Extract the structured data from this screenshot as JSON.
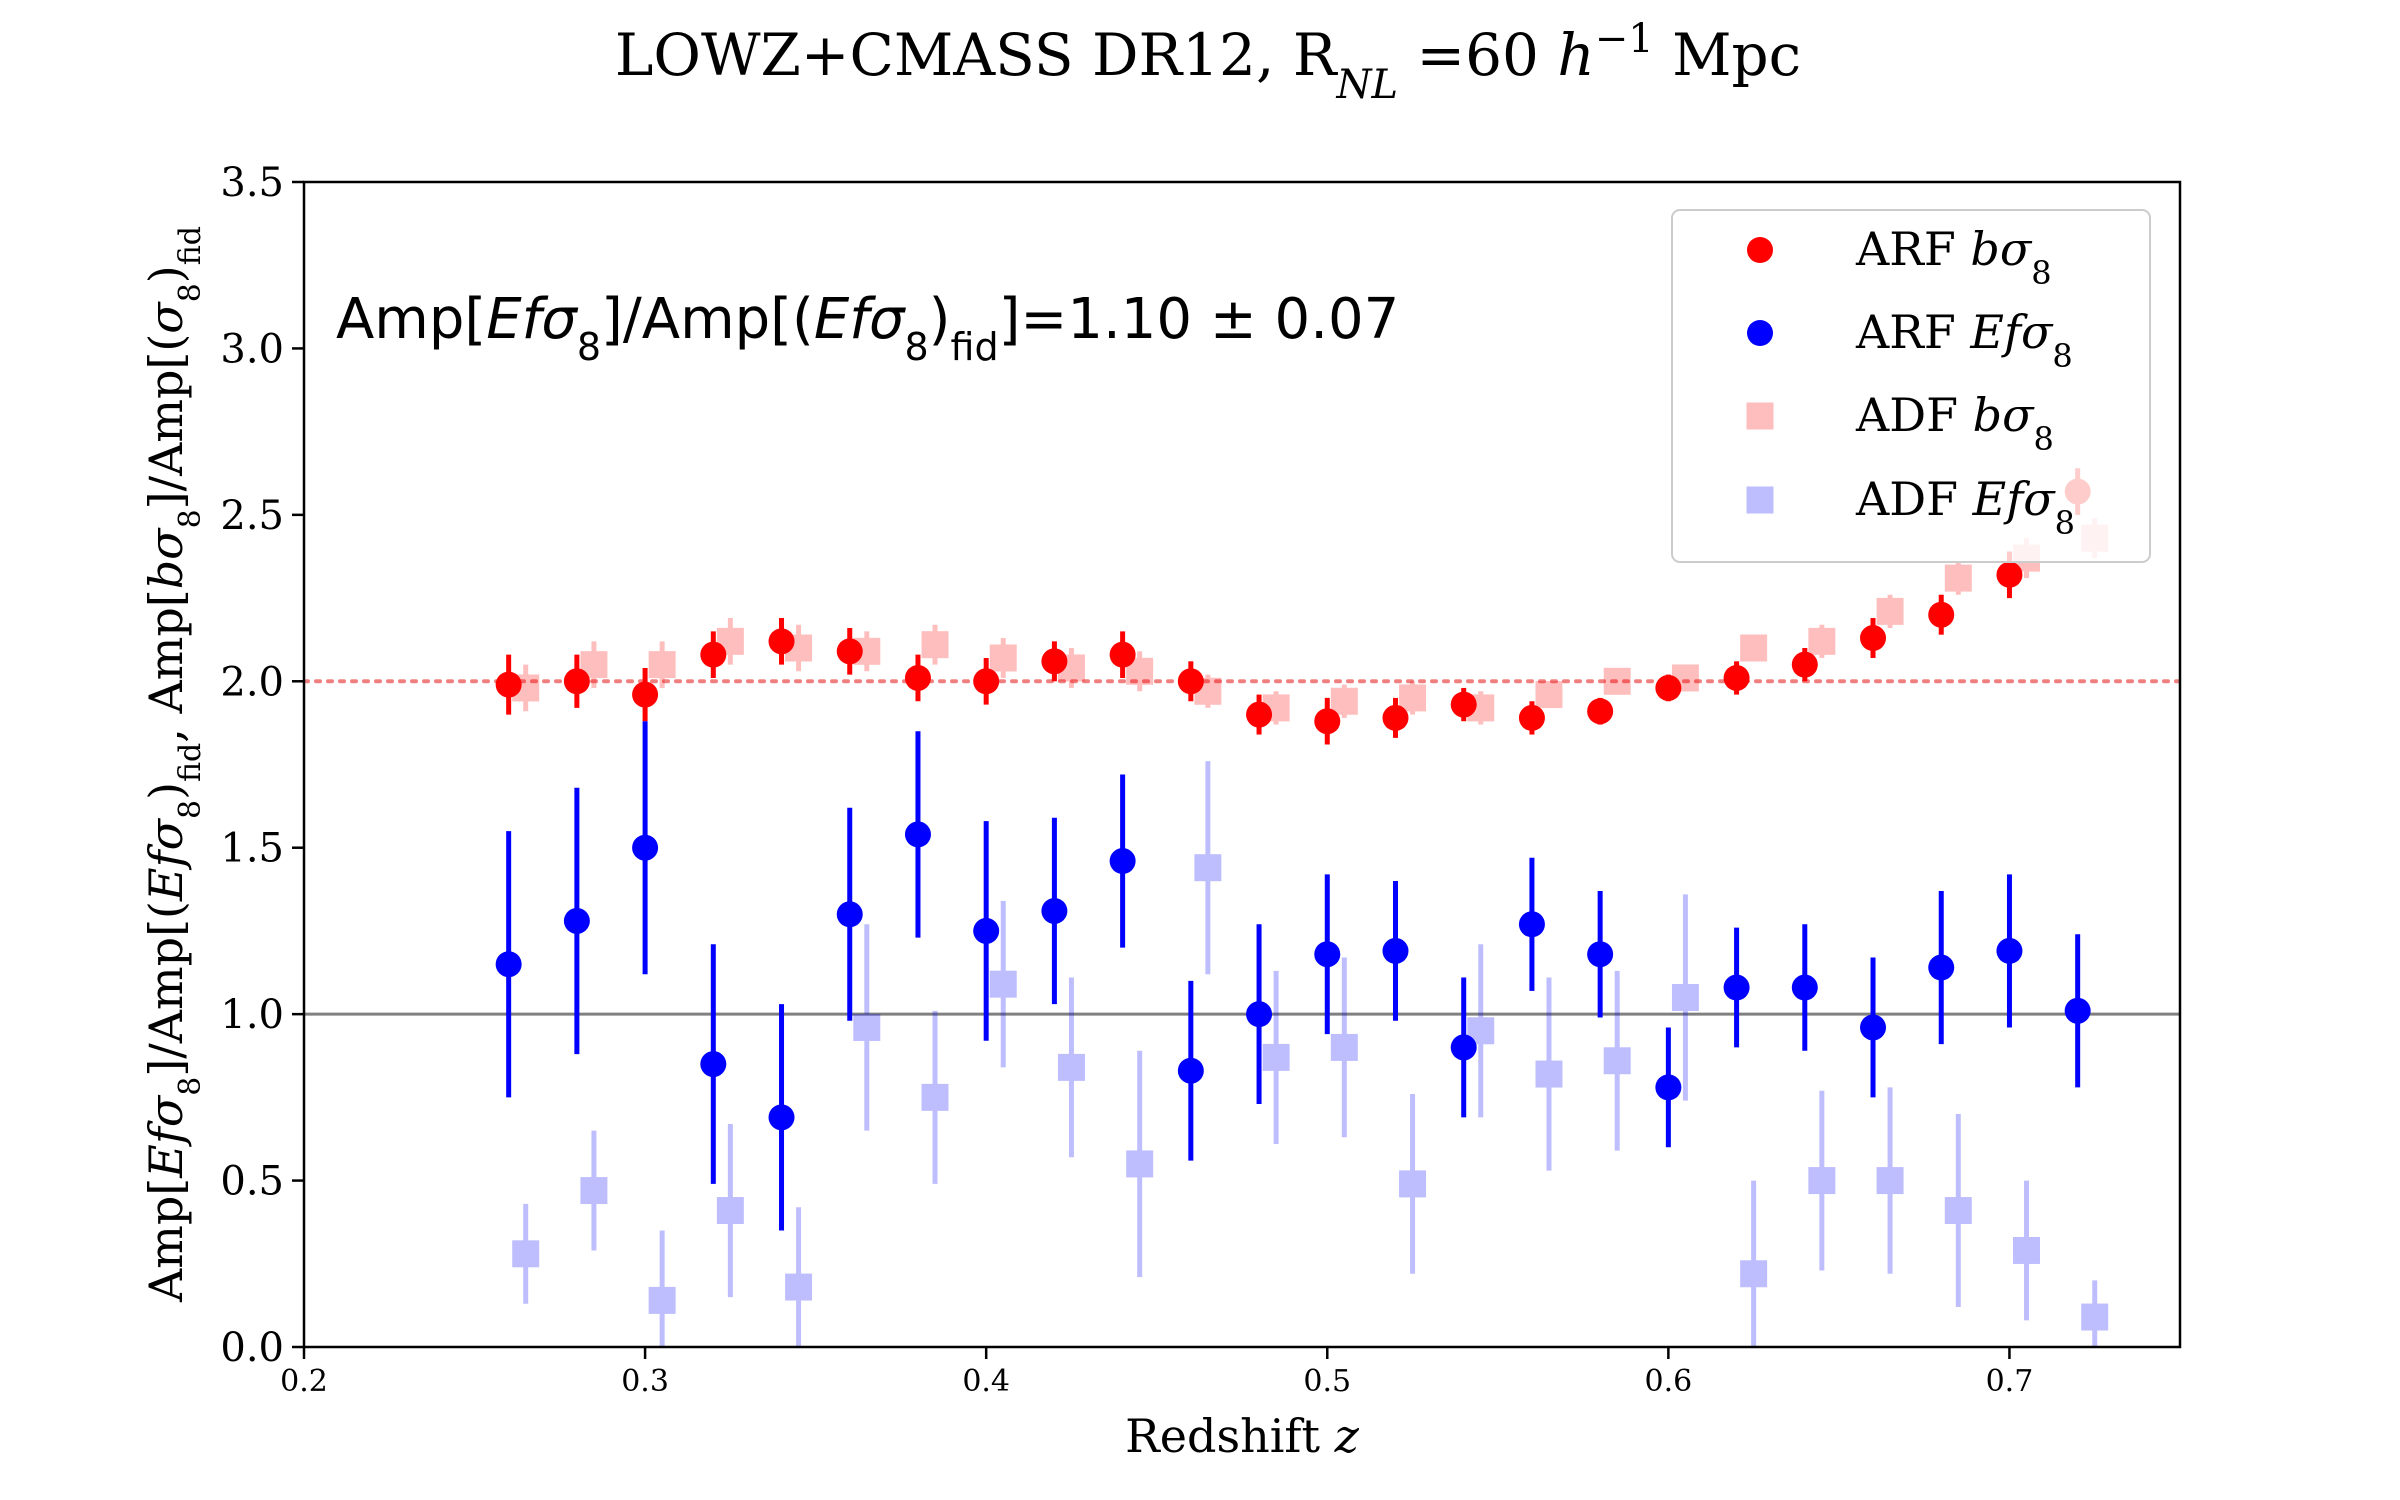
{
  "chart_data": {
    "type": "scatter",
    "title": "LOWZ+CMASS DR12, R_NL =60 h^-1 Mpc",
    "title_parts": {
      "pre": "LOWZ+CMASS DR12, R",
      "sub": "NL",
      "mid": " =60 ",
      "h": "h",
      "sup": "−1",
      "post": " Mpc"
    },
    "xlabel": "Redshift z",
    "xlabel_parts": {
      "text": "Redshift ",
      "var": "z"
    },
    "ylabel": "Amp[Efσ8]/Amp[(Efσ8)fid, Amp[bσ8]/Amp[(σ8)fid]",
    "ylabel_parts": [
      "Amp[",
      "Efσ",
      "8",
      "]/Amp[(",
      "Efσ",
      "8",
      ")",
      "fid",
      ", Amp[",
      "bσ",
      "8",
      "]/Amp[(",
      "σ",
      "8",
      ")",
      "fid"
    ],
    "xlim": [
      0.2,
      0.75
    ],
    "ylim": [
      0.0,
      3.5
    ],
    "xticks": [
      0.2,
      0.3,
      0.4,
      0.5,
      0.6,
      0.7
    ],
    "xtick_labels": [
      "0.2",
      "0.3",
      "0.4",
      "0.5",
      "0.6",
      "0.7"
    ],
    "yticks": [
      0.0,
      0.5,
      1.0,
      1.5,
      2.0,
      2.5,
      3.0,
      3.5
    ],
    "ytick_labels": [
      "0.0",
      "0.5",
      "1.0",
      "1.5",
      "2.0",
      "2.5",
      "3.0",
      "3.5"
    ],
    "grid": false,
    "legend_position": "top-right",
    "reference_lines": [
      {
        "y": 2.0,
        "style": "dotted",
        "color": "#f08080"
      },
      {
        "y": 1.0,
        "style": "solid",
        "color": "#808080"
      }
    ],
    "annotation": "Amp[Efσ8]/Amp[(Efσ8)fid]=1.10 ± 0.07",
    "annotation_parts": [
      "Amp[",
      "Efσ",
      "8",
      "]/Amp[(",
      "Efσ",
      "8",
      ")",
      "fid",
      "]=1.10 ± 0.07"
    ],
    "series": [
      {
        "name": "ARF bσ8",
        "legend_parts": {
          "pre": "ARF ",
          "var": "bσ",
          "sub": "8"
        },
        "marker": "circle",
        "color": "#ff0000",
        "alpha": 1.0,
        "x": [
          0.26,
          0.28,
          0.3,
          0.32,
          0.34,
          0.36,
          0.38,
          0.4,
          0.42,
          0.44,
          0.46,
          0.48,
          0.5,
          0.52,
          0.54,
          0.56,
          0.58,
          0.6,
          0.62,
          0.64,
          0.66,
          0.68,
          0.7,
          0.72
        ],
        "y": [
          1.99,
          2.0,
          1.96,
          2.08,
          2.12,
          2.09,
          2.01,
          2.0,
          2.06,
          2.08,
          2.0,
          1.9,
          1.88,
          1.89,
          1.93,
          1.89,
          1.91,
          1.98,
          2.01,
          2.05,
          2.13,
          2.2,
          2.32,
          2.57
        ],
        "err": [
          0.09,
          0.08,
          0.08,
          0.07,
          0.07,
          0.07,
          0.07,
          0.07,
          0.06,
          0.07,
          0.06,
          0.06,
          0.07,
          0.06,
          0.05,
          0.05,
          0.04,
          0.04,
          0.05,
          0.05,
          0.06,
          0.06,
          0.07,
          0.07
        ]
      },
      {
        "name": "ARF Efσ8",
        "legend_parts": {
          "pre": "ARF ",
          "var": "Efσ",
          "sub": "8"
        },
        "marker": "circle",
        "color": "#0000ff",
        "alpha": 1.0,
        "x": [
          0.26,
          0.28,
          0.3,
          0.32,
          0.34,
          0.36,
          0.38,
          0.4,
          0.42,
          0.44,
          0.46,
          0.48,
          0.5,
          0.52,
          0.54,
          0.56,
          0.58,
          0.6,
          0.62,
          0.64,
          0.66,
          0.68,
          0.7,
          0.72
        ],
        "y": [
          1.15,
          1.28,
          1.5,
          0.85,
          0.69,
          1.3,
          1.54,
          1.25,
          1.31,
          1.46,
          0.83,
          1.0,
          1.18,
          1.19,
          0.9,
          1.27,
          1.18,
          0.78,
          1.08,
          1.08,
          0.96,
          1.14,
          1.19,
          1.01
        ],
        "err": [
          0.4,
          0.4,
          0.38,
          0.36,
          0.34,
          0.32,
          0.31,
          0.33,
          0.28,
          0.26,
          0.27,
          0.27,
          0.24,
          0.21,
          0.21,
          0.2,
          0.19,
          0.18,
          0.18,
          0.19,
          0.21,
          0.23,
          0.23,
          0.23
        ]
      },
      {
        "name": "ADF bσ8",
        "legend_parts": {
          "pre": "ADF ",
          "var": "bσ",
          "sub": "8"
        },
        "marker": "square",
        "color": "#ff0000",
        "alpha": 0.25,
        "x": [
          0.265,
          0.285,
          0.305,
          0.325,
          0.345,
          0.365,
          0.385,
          0.405,
          0.425,
          0.445,
          0.465,
          0.485,
          0.505,
          0.525,
          0.545,
          0.565,
          0.585,
          0.605,
          0.625,
          0.645,
          0.665,
          0.685,
          0.705,
          0.725
        ],
        "y": [
          1.98,
          2.05,
          2.05,
          2.12,
          2.1,
          2.09,
          2.11,
          2.07,
          2.04,
          2.03,
          1.97,
          1.92,
          1.94,
          1.95,
          1.92,
          1.96,
          2.0,
          2.01,
          2.1,
          2.12,
          2.21,
          2.31,
          2.37,
          2.43
        ],
        "err": [
          0.07,
          0.07,
          0.07,
          0.07,
          0.07,
          0.06,
          0.06,
          0.06,
          0.06,
          0.06,
          0.05,
          0.05,
          0.05,
          0.05,
          0.05,
          0.04,
          0.04,
          0.04,
          0.04,
          0.05,
          0.05,
          0.05,
          0.06,
          0.06
        ]
      },
      {
        "name": "ADF Efσ8",
        "legend_parts": {
          "pre": "ADF ",
          "var": "Efσ",
          "sub": "8"
        },
        "marker": "square",
        "color": "#0000ff",
        "alpha": 0.25,
        "x": [
          0.265,
          0.285,
          0.305,
          0.325,
          0.345,
          0.365,
          0.385,
          0.405,
          0.425,
          0.445,
          0.465,
          0.485,
          0.505,
          0.525,
          0.545,
          0.565,
          0.585,
          0.605,
          0.625,
          0.645,
          0.665,
          0.685,
          0.705,
          0.725
        ],
        "y": [
          0.28,
          0.47,
          0.14,
          0.41,
          0.18,
          0.96,
          0.75,
          1.09,
          0.84,
          0.55,
          1.44,
          0.87,
          0.9,
          0.49,
          0.95,
          0.82,
          0.86,
          1.05,
          0.22,
          0.5,
          0.5,
          0.41,
          0.29,
          0.09
        ],
        "err": [
          0.15,
          0.18,
          0.21,
          0.26,
          0.24,
          0.31,
          0.26,
          0.25,
          0.27,
          0.34,
          0.32,
          0.26,
          0.27,
          0.27,
          0.26,
          0.29,
          0.27,
          0.31,
          0.28,
          0.27,
          0.28,
          0.29,
          0.21,
          0.11
        ]
      }
    ]
  }
}
